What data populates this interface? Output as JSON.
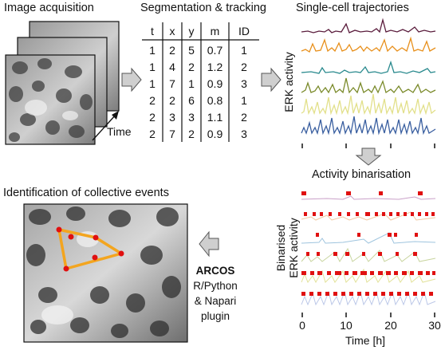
{
  "headings": {
    "image_acquisition": "Image acquisition",
    "segmentation": "Segmentation & tracking",
    "trajectories": "Single-cell trajectories",
    "binarisation": "Activity binarisation",
    "collective": "Identification of collective events"
  },
  "time_label": "Time",
  "table": {
    "columns": [
      "t",
      "x",
      "y",
      "m",
      "ID"
    ],
    "rows": [
      [
        "1",
        "2",
        "5",
        "0.7",
        "1"
      ],
      [
        "1",
        "4",
        "2",
        "1.2",
        "2"
      ],
      [
        "1",
        "7",
        "1",
        "0.9",
        "3"
      ],
      [
        "2",
        "2",
        "6",
        "0.8",
        "1"
      ],
      [
        "2",
        "3",
        "3",
        "1.1",
        "2"
      ],
      [
        "2",
        "7",
        "2",
        "0.9",
        "3"
      ]
    ]
  },
  "trajectories_ylabel": "ERK activity",
  "binarised_ylabel_line1": "Binarised",
  "binarised_ylabel_line2": "ERK activity",
  "binarised_axis": {
    "xlabel": "Time [h]",
    "ticks": [
      "0",
      "10",
      "20",
      "30"
    ]
  },
  "arcos": {
    "title": "ARCOS",
    "line2": "R/Python",
    "line3": "& Napari",
    "line4": "plugin"
  },
  "colors": {
    "series": [
      "#5a1c3c",
      "#e8901c",
      "#2a8a8e",
      "#7a8a2a",
      "#e2e08a",
      "#3a5fa0"
    ],
    "binary_marks": "#e01010",
    "binary_lines": [
      "#c9a0c8",
      "#f0c8a0",
      "#9ec4de",
      "#c8d49e",
      "#e2e29a",
      "#bcc8e8"
    ],
    "polygon": "#f3a51f",
    "polygon_points": "#e01010",
    "arrow_fill": "#cfcfcf"
  }
}
